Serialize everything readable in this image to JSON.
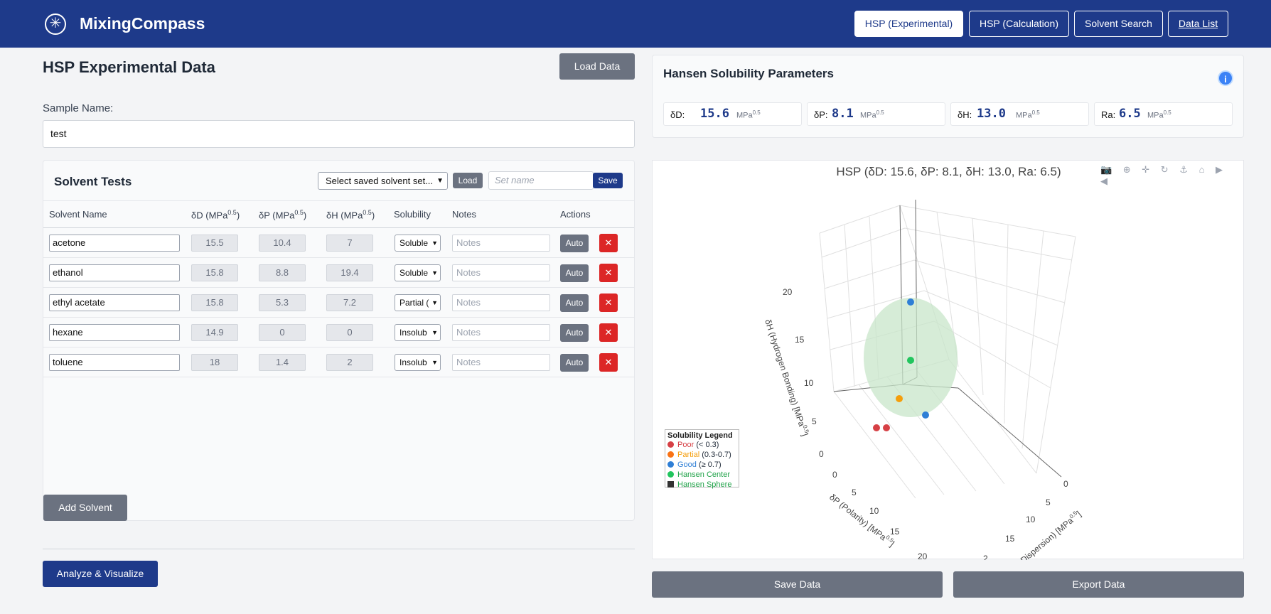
{
  "header": {
    "brand": "MixingCompass",
    "nav": [
      {
        "label": "HSP (Experimental)",
        "active": true
      },
      {
        "label": "HSP (Calculation)"
      },
      {
        "label": "Solvent Search"
      },
      {
        "label": "Data List"
      }
    ]
  },
  "left": {
    "title": "HSP Experimental Data",
    "load_data": "Load Data",
    "sample_label": "Sample Name:",
    "sample_value": "test",
    "tests": {
      "title": "Solvent Tests",
      "set_select": "Select saved solvent set...",
      "load": "Load",
      "set_name_placeholder": "Set name",
      "save": "Save",
      "columns": {
        "name": "Solvent Name",
        "dd": "δD (MPa",
        "dp": "δP (MPa",
        "dh": "δH (MPa",
        "exp": "0.5",
        "close": ")",
        "solubility": "Solubility",
        "notes": "Notes",
        "actions": "Actions"
      },
      "rows": [
        {
          "name": "acetone",
          "dd": "15.5",
          "dp": "10.4",
          "dh": "7",
          "sol": "Soluble",
          "notes": "Notes",
          "auto": "Auto",
          "del": "✕"
        },
        {
          "name": "ethanol",
          "dd": "15.8",
          "dp": "8.8",
          "dh": "19.4",
          "sol": "Soluble",
          "notes": "Notes",
          "auto": "Auto",
          "del": "✕"
        },
        {
          "name": "ethyl acetate",
          "dd": "15.8",
          "dp": "5.3",
          "dh": "7.2",
          "sol": "Partial (",
          "notes": "Notes",
          "auto": "Auto",
          "del": "✕"
        },
        {
          "name": "hexane",
          "dd": "14.9",
          "dp": "0",
          "dh": "0",
          "sol": "Insolub",
          "notes": "Notes",
          "auto": "Auto",
          "del": "✕"
        },
        {
          "name": "toluene",
          "dd": "18",
          "dp": "1.4",
          "dh": "2",
          "sol": "Insolub",
          "notes": "Notes",
          "auto": "Auto",
          "del": "✕"
        }
      ],
      "add": "Add Solvent"
    },
    "analyze": "Analyze & Visualize"
  },
  "right": {
    "hsp_title": "Hansen Solubility Parameters",
    "info": "i",
    "params": [
      {
        "k": "δD:",
        "v": "15.6",
        "u": "MPa",
        "e": "0.5"
      },
      {
        "k": "δP:",
        "v": "8.1",
        "u": "MPa",
        "e": "0.5"
      },
      {
        "k": "δH:",
        "v": "13.0",
        "u": "MPa",
        "e": "0.5"
      },
      {
        "k": "Ra:",
        "v": "6.5",
        "u": "MPa",
        "e": "0.5"
      }
    ],
    "plot": {
      "title": "HSP (δD: 15.6, δP: 8.1, δH: 13.0, Ra: 6.5)",
      "tools": "📷 ⊕ ✛ ↻ ⚓ ⌂ ▶ ◀",
      "axis_h": "δH (Hydrogen Bonding) [MPa",
      "axis_p": "δP (Polarity) [MPa",
      "axis_d": "Dispersion) [MPa",
      "exp": "0.5",
      "close": "]",
      "ticks_h": [
        "0",
        "5",
        "10",
        "15",
        "20"
      ],
      "ticks_p": [
        "0",
        "5",
        "10",
        "15",
        "20"
      ],
      "ticks_d": [
        "0",
        "5",
        "10",
        "15",
        "2"
      ],
      "legend": {
        "title": "Solubility Legend",
        "poor": "Poor",
        "poor_r": "(< 0.3)",
        "partial": "Partial",
        "partial_r": "(0.3-0.7)",
        "good": "Good",
        "good_r": "(≥ 0.7)",
        "center": "Hansen Center",
        "sphere": "Hansen Sphere"
      },
      "colors": {
        "poor": "#d64045",
        "partial": "#f59e0b",
        "good": "#2f7fd6",
        "center": "#22c55e",
        "sphere": "#c8e6c9"
      }
    },
    "save_data": "Save Data",
    "export_data": "Export Data"
  }
}
